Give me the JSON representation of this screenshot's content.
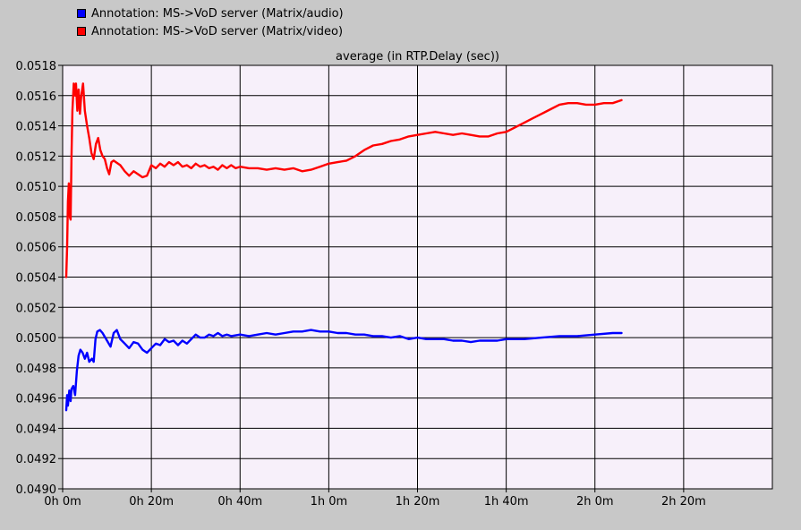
{
  "legend": [
    {
      "label": "Annotation:  MS->VoD server (Matrix/audio)",
      "color": "#0000ff"
    },
    {
      "label": "Annotation:  MS->VoD server (Matrix/video)",
      "color": "#ff0000"
    }
  ],
  "chart_data": {
    "type": "line",
    "title": "average (in RTP.Delay (sec))",
    "x_unit": "minutes",
    "xlim": [
      0,
      160
    ],
    "ylim": [
      0.049,
      0.0518
    ],
    "grid": true,
    "xticks": [
      {
        "value": 0,
        "label": "0h 0m"
      },
      {
        "value": 20,
        "label": "0h 20m"
      },
      {
        "value": 40,
        "label": "0h 40m"
      },
      {
        "value": 60,
        "label": "1h 0m"
      },
      {
        "value": 80,
        "label": "1h 20m"
      },
      {
        "value": 100,
        "label": "1h 40m"
      },
      {
        "value": 120,
        "label": "2h 0m"
      },
      {
        "value": 140,
        "label": "2h 20m"
      }
    ],
    "yticks": [
      {
        "value": 0.0518,
        "label": "0.0518"
      },
      {
        "value": 0.0516,
        "label": "0.0516"
      },
      {
        "value": 0.0514,
        "label": "0.0514"
      },
      {
        "value": 0.0512,
        "label": "0.0512"
      },
      {
        "value": 0.051,
        "label": "0.0510"
      },
      {
        "value": 0.0508,
        "label": "0.0508"
      },
      {
        "value": 0.0506,
        "label": "0.0506"
      },
      {
        "value": 0.0504,
        "label": "0.0504"
      },
      {
        "value": 0.0502,
        "label": "0.0502"
      },
      {
        "value": 0.05,
        "label": "0.0500"
      },
      {
        "value": 0.0498,
        "label": "0.0498"
      },
      {
        "value": 0.0496,
        "label": "0.0496"
      },
      {
        "value": 0.0494,
        "label": "0.0494"
      },
      {
        "value": 0.0492,
        "label": "0.0492"
      },
      {
        "value": 0.049,
        "label": "0.0490"
      }
    ],
    "series": [
      {
        "name": "Annotation:  MS->VoD server (Matrix/audio)",
        "color": "#0000ff",
        "points": [
          [
            0.8,
            0.04952
          ],
          [
            1.0,
            0.04962
          ],
          [
            1.2,
            0.04955
          ],
          [
            1.5,
            0.04965
          ],
          [
            1.8,
            0.04958
          ],
          [
            2.0,
            0.04966
          ],
          [
            2.4,
            0.04968
          ],
          [
            2.8,
            0.04962
          ],
          [
            3.2,
            0.04978
          ],
          [
            3.6,
            0.04988
          ],
          [
            4.0,
            0.04992
          ],
          [
            4.5,
            0.0499
          ],
          [
            5.0,
            0.04986
          ],
          [
            5.5,
            0.0499
          ],
          [
            6.0,
            0.04984
          ],
          [
            6.6,
            0.04986
          ],
          [
            7.0,
            0.04984
          ],
          [
            7.4,
            0.04999
          ],
          [
            7.8,
            0.05004
          ],
          [
            8.4,
            0.05005
          ],
          [
            9.0,
            0.05003
          ],
          [
            10.0,
            0.04998
          ],
          [
            10.8,
            0.04994
          ],
          [
            11.5,
            0.05003
          ],
          [
            12.2,
            0.05005
          ],
          [
            13.0,
            0.04999
          ],
          [
            14.0,
            0.04996
          ],
          [
            15.0,
            0.04993
          ],
          [
            16.0,
            0.04997
          ],
          [
            17.0,
            0.04996
          ],
          [
            18.0,
            0.04992
          ],
          [
            19.0,
            0.0499
          ],
          [
            20.0,
            0.04993
          ],
          [
            21.0,
            0.04996
          ],
          [
            22.0,
            0.04995
          ],
          [
            23.0,
            0.04999
          ],
          [
            24.0,
            0.04997
          ],
          [
            25.0,
            0.04998
          ],
          [
            26.0,
            0.04995
          ],
          [
            27.0,
            0.04998
          ],
          [
            28.0,
            0.04996
          ],
          [
            29.0,
            0.04999
          ],
          [
            30.0,
            0.05002
          ],
          [
            31.0,
            0.05
          ],
          [
            32.0,
            0.05
          ],
          [
            33.0,
            0.05002
          ],
          [
            34.0,
            0.05001
          ],
          [
            35.0,
            0.05003
          ],
          [
            36.0,
            0.05001
          ],
          [
            37.0,
            0.05002
          ],
          [
            38.0,
            0.05001
          ],
          [
            40.0,
            0.05002
          ],
          [
            42.0,
            0.05001
          ],
          [
            44.0,
            0.05002
          ],
          [
            46.0,
            0.05003
          ],
          [
            48.0,
            0.05002
          ],
          [
            50.0,
            0.05003
          ],
          [
            52.0,
            0.05004
          ],
          [
            54.0,
            0.05004
          ],
          [
            56.0,
            0.05005
          ],
          [
            58.0,
            0.05004
          ],
          [
            60.0,
            0.05004
          ],
          [
            62.0,
            0.05003
          ],
          [
            64.0,
            0.05003
          ],
          [
            66.0,
            0.05002
          ],
          [
            68.0,
            0.05002
          ],
          [
            70.0,
            0.05001
          ],
          [
            72.0,
            0.05001
          ],
          [
            74.0,
            0.05
          ],
          [
            76.0,
            0.05001
          ],
          [
            78.0,
            0.04999
          ],
          [
            80.0,
            0.05
          ],
          [
            82.0,
            0.04999
          ],
          [
            84.0,
            0.04999
          ],
          [
            86.0,
            0.04999
          ],
          [
            88.0,
            0.04998
          ],
          [
            90.0,
            0.04998
          ],
          [
            92.0,
            0.04997
          ],
          [
            94.0,
            0.04998
          ],
          [
            96.0,
            0.04998
          ],
          [
            98.0,
            0.04998
          ],
          [
            100.0,
            0.04999
          ],
          [
            104.0,
            0.04999
          ],
          [
            108.0,
            0.05
          ],
          [
            112.0,
            0.05001
          ],
          [
            116.0,
            0.05001
          ],
          [
            120.0,
            0.05002
          ],
          [
            124.0,
            0.05003
          ],
          [
            126.0,
            0.05003
          ]
        ]
      },
      {
        "name": "Annotation:  MS->VoD server (Matrix/video)",
        "color": "#ff0000",
        "points": [
          [
            0.8,
            0.0504
          ],
          [
            1.0,
            0.0506
          ],
          [
            1.2,
            0.0509
          ],
          [
            1.4,
            0.05102
          ],
          [
            1.6,
            0.0508
          ],
          [
            1.8,
            0.05078
          ],
          [
            2.0,
            0.0512
          ],
          [
            2.2,
            0.0515
          ],
          [
            2.5,
            0.05168
          ],
          [
            2.8,
            0.0516
          ],
          [
            3.0,
            0.05168
          ],
          [
            3.3,
            0.0515
          ],
          [
            3.6,
            0.05164
          ],
          [
            3.9,
            0.05148
          ],
          [
            4.2,
            0.0516
          ],
          [
            4.6,
            0.05168
          ],
          [
            5.0,
            0.0515
          ],
          [
            5.5,
            0.0514
          ],
          [
            6.0,
            0.05132
          ],
          [
            6.5,
            0.05122
          ],
          [
            7.0,
            0.05118
          ],
          [
            7.5,
            0.05128
          ],
          [
            8.0,
            0.05132
          ],
          [
            8.5,
            0.05124
          ],
          [
            9.0,
            0.0512
          ],
          [
            9.5,
            0.05118
          ],
          [
            10.0,
            0.05112
          ],
          [
            10.5,
            0.05108
          ],
          [
            11.0,
            0.05116
          ],
          [
            11.5,
            0.05117
          ],
          [
            12.0,
            0.05116
          ],
          [
            13.0,
            0.05114
          ],
          [
            14.0,
            0.0511
          ],
          [
            15.0,
            0.05107
          ],
          [
            16.0,
            0.0511
          ],
          [
            17.0,
            0.05108
          ],
          [
            18.0,
            0.05106
          ],
          [
            19.0,
            0.05107
          ],
          [
            20.0,
            0.05114
          ],
          [
            21.0,
            0.05112
          ],
          [
            22.0,
            0.05115
          ],
          [
            23.0,
            0.05113
          ],
          [
            24.0,
            0.05116
          ],
          [
            25.0,
            0.05114
          ],
          [
            26.0,
            0.05116
          ],
          [
            27.0,
            0.05113
          ],
          [
            28.0,
            0.05114
          ],
          [
            29.0,
            0.05112
          ],
          [
            30.0,
            0.05115
          ],
          [
            31.0,
            0.05113
          ],
          [
            32.0,
            0.05114
          ],
          [
            33.0,
            0.05112
          ],
          [
            34.0,
            0.05113
          ],
          [
            35.0,
            0.05111
          ],
          [
            36.0,
            0.05114
          ],
          [
            37.0,
            0.05112
          ],
          [
            38.0,
            0.05114
          ],
          [
            39.0,
            0.05112
          ],
          [
            40.0,
            0.05113
          ],
          [
            42.0,
            0.05112
          ],
          [
            44.0,
            0.05112
          ],
          [
            46.0,
            0.05111
          ],
          [
            48.0,
            0.05112
          ],
          [
            50.0,
            0.05111
          ],
          [
            52.0,
            0.05112
          ],
          [
            54.0,
            0.0511
          ],
          [
            56.0,
            0.05111
          ],
          [
            58.0,
            0.05113
          ],
          [
            60.0,
            0.05115
          ],
          [
            62.0,
            0.05116
          ],
          [
            64.0,
            0.05117
          ],
          [
            66.0,
            0.0512
          ],
          [
            68.0,
            0.05124
          ],
          [
            70.0,
            0.05127
          ],
          [
            72.0,
            0.05128
          ],
          [
            74.0,
            0.0513
          ],
          [
            76.0,
            0.05131
          ],
          [
            78.0,
            0.05133
          ],
          [
            80.0,
            0.05134
          ],
          [
            82.0,
            0.05135
          ],
          [
            84.0,
            0.05136
          ],
          [
            86.0,
            0.05135
          ],
          [
            88.0,
            0.05134
          ],
          [
            90.0,
            0.05135
          ],
          [
            92.0,
            0.05134
          ],
          [
            94.0,
            0.05133
          ],
          [
            96.0,
            0.05133
          ],
          [
            98.0,
            0.05135
          ],
          [
            100.0,
            0.05136
          ],
          [
            102.0,
            0.05139
          ],
          [
            104.0,
            0.05142
          ],
          [
            106.0,
            0.05145
          ],
          [
            108.0,
            0.05148
          ],
          [
            110.0,
            0.05151
          ],
          [
            112.0,
            0.05154
          ],
          [
            114.0,
            0.05155
          ],
          [
            116.0,
            0.05155
          ],
          [
            118.0,
            0.05154
          ],
          [
            120.0,
            0.05154
          ],
          [
            122.0,
            0.05155
          ],
          [
            124.0,
            0.05155
          ],
          [
            126.0,
            0.05157
          ]
        ]
      }
    ]
  }
}
